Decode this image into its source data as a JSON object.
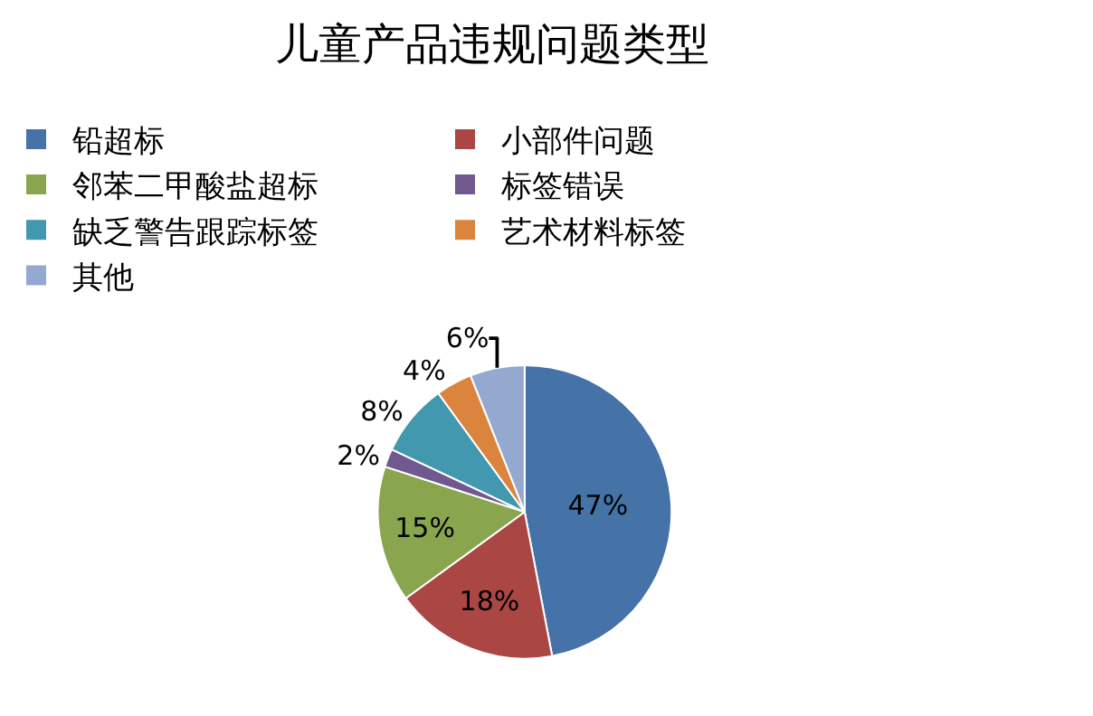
{
  "chart_data": {
    "type": "pie",
    "title": "儿童产品违规问题类型",
    "categories": [
      "铅超标",
      "小部件问题",
      "邻苯二甲酸盐超标",
      "标签错误",
      "缺乏警告跟踪标签",
      "艺术材料标签",
      "其他"
    ],
    "values": [
      47,
      18,
      15,
      2,
      8,
      4,
      6
    ],
    "value_labels": [
      "47%",
      "18%",
      "15%",
      "2%",
      "8%",
      "4%",
      "6%"
    ],
    "colors": [
      "#4572a7",
      "#aa4643",
      "#89a54e",
      "#71588f",
      "#4198af",
      "#db843d",
      "#93a9cf"
    ],
    "legend": "top"
  }
}
